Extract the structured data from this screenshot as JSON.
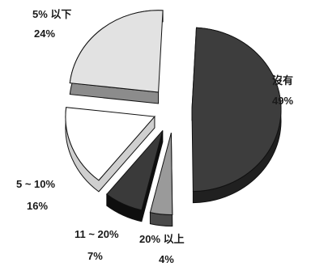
{
  "chart_data": {
    "type": "pie",
    "style": "3d-exploded",
    "slices": [
      {
        "name": "沒有",
        "value": 49,
        "label_pct": "49%",
        "color": "#3d3d3d",
        "side": "#202020"
      },
      {
        "name": "20% 以上",
        "value": 4,
        "label_pct": "4%",
        "color": "#9a9a9a",
        "side": "#4a4a4a"
      },
      {
        "name": "11 ~ 20%",
        "value": 7,
        "label_pct": "7%",
        "color": "#3a3a3a",
        "side": "#0e0e0e"
      },
      {
        "name": "5 ~ 10%",
        "value": 16,
        "label_pct": "16%",
        "color": "#ffffff",
        "side": "#cfcfcf"
      },
      {
        "name": "5% 以下",
        "value": 24,
        "label_pct": "24%",
        "color": "#e2e2e2",
        "side": "#8c8c8c"
      }
    ]
  }
}
